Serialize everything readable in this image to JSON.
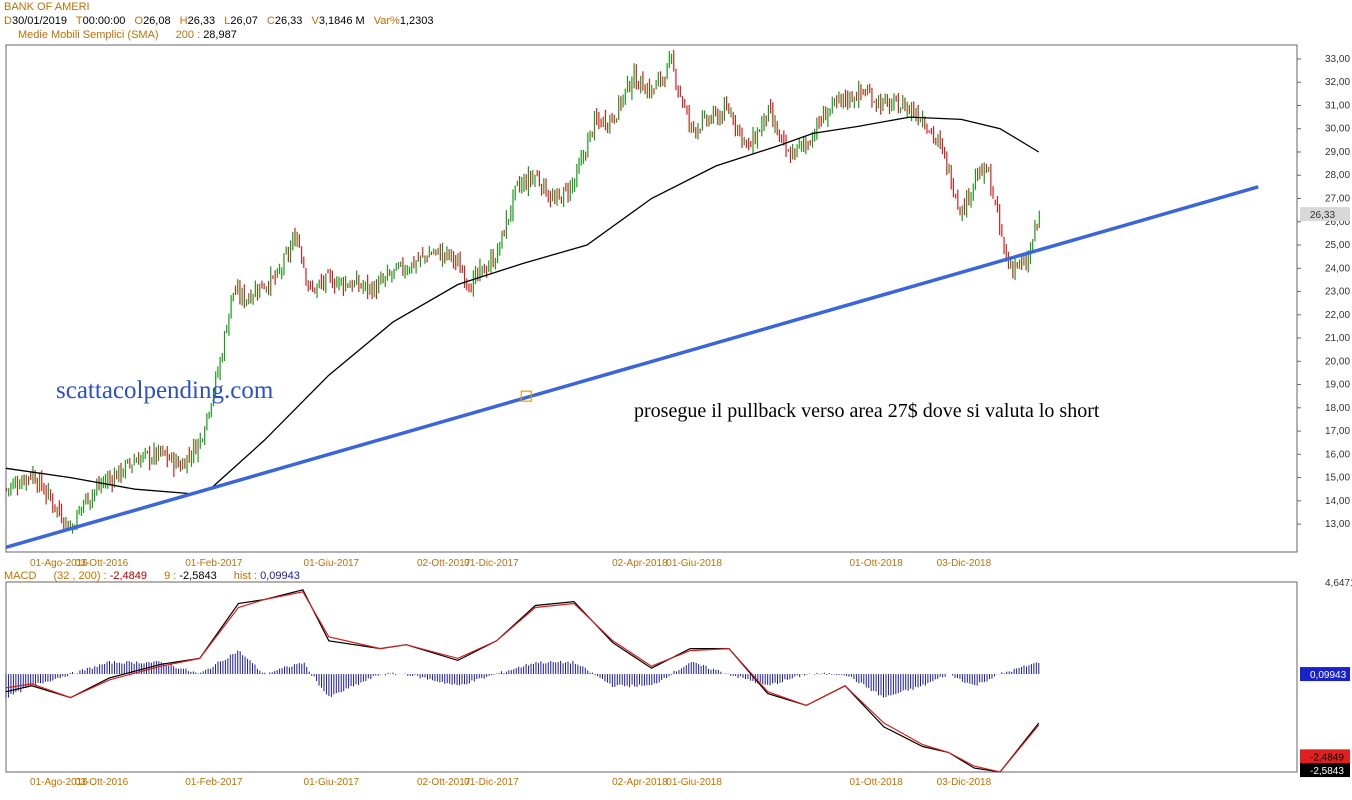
{
  "header": {
    "symbol": "BANK OF AMERI",
    "date_key": "D",
    "date_val": "30/01/2019",
    "time_key": "T",
    "time_val": "00:00:00",
    "open_key": "O",
    "open_val": "26,08",
    "high_key": "H",
    "high_val": "26,33",
    "low_key": "L",
    "low_val": "26,07",
    "close_key": "C",
    "close_val": "26,33",
    "volume_key": "V",
    "volume_val": "3,1846 M",
    "var_key": "Var%",
    "var_val": "1,2303",
    "sma_label": "Medie Mobili Semplici (SMA)",
    "sma_period": "200 :",
    "sma_value": "28,987"
  },
  "macd_header": {
    "label": "MACD",
    "params": "(32 , 200) :",
    "macd_value": "-2,4849",
    "signal_key": "9 :",
    "signal_value": "-2,5843",
    "hist_key": "hist :",
    "hist_value": "0,09943"
  },
  "annotations": {
    "watermark": "scattacolpending.com",
    "note": "prosegue il pullback verso area 27$ dove si valuta lo short"
  },
  "colors": {
    "up_bar": "#1a9a1a",
    "down_bar": "#d02020",
    "sma_line": "#000000",
    "trendline": "#3a66d8",
    "macd_line": "#000000",
    "signal_line": "#d02020",
    "histogram": "#1a1aa0",
    "date_text": "#c07000",
    "last_price_tag": "#d8d8d8",
    "hist_tag": "#1a22cc",
    "macd_tag": "#e02020",
    "signal_tag": "#000000"
  },
  "chart_data": [
    {
      "type": "candlestick",
      "title": "BANK OF AMERI",
      "y_ticks": [
        "13,00",
        "14,00",
        "15,00",
        "16,00",
        "17,00",
        "18,00",
        "19,00",
        "20,00",
        "21,00",
        "22,00",
        "23,00",
        "24,00",
        "25,00",
        "26,00",
        "27,00",
        "28,00",
        "29,00",
        "30,00",
        "31,00",
        "32,00",
        "33,00"
      ],
      "ylim": [
        11.8,
        33.6
      ],
      "last_price_label": "26,33",
      "x_date_labels": [
        "01-Ago-2016",
        "03-Ott-2016",
        "01-Feb-2017",
        "01-Giu-2017",
        "02-Ott-2017",
        "01-Dic-2017",
        "02-Apr-2018",
        "01-Giu-2018",
        "01-Ott-2018",
        "03-Dic-2018"
      ],
      "x_date_pos": [
        0.041,
        0.074,
        0.161,
        0.252,
        0.339,
        0.376,
        0.491,
        0.533,
        0.674,
        0.742
      ],
      "close_path": {
        "x": [
          0,
          0.02,
          0.035,
          0.05,
          0.06,
          0.075,
          0.09,
          0.1,
          0.12,
          0.135,
          0.15,
          0.165,
          0.175,
          0.185,
          0.195,
          0.21,
          0.225,
          0.235,
          0.25,
          0.27,
          0.285,
          0.3,
          0.315,
          0.33,
          0.345,
          0.36,
          0.38,
          0.395,
          0.41,
          0.425,
          0.44,
          0.455,
          0.47,
          0.485,
          0.5,
          0.515,
          0.53,
          0.545,
          0.56,
          0.575,
          0.59,
          0.605,
          0.62,
          0.635,
          0.65,
          0.665,
          0.68,
          0.695,
          0.71,
          0.725,
          0.74,
          0.75,
          0.76,
          0.775,
          0.79,
          0.8
        ],
        "y": [
          14.5,
          15.2,
          14.0,
          12.8,
          14.0,
          14.8,
          15.3,
          15.8,
          16.0,
          15.5,
          16.6,
          19.8,
          23.0,
          22.7,
          23.2,
          23.6,
          25.5,
          23.0,
          23.5,
          23.3,
          23.1,
          23.8,
          24.2,
          24.7,
          24.5,
          23.3,
          24.6,
          27.4,
          28.0,
          26.8,
          27.7,
          30.2,
          30.5,
          32.2,
          31.6,
          32.8,
          30.0,
          30.4,
          30.8,
          29.1,
          30.7,
          28.8,
          29.4,
          30.7,
          31.3,
          31.6,
          31.0,
          31.0,
          30.5,
          29.0,
          26.4,
          27.9,
          28.2,
          24.2,
          24.1,
          26.3
        ]
      },
      "sma200": {
        "x": [
          0,
          0.05,
          0.1,
          0.145,
          0.16,
          0.2,
          0.25,
          0.3,
          0.35,
          0.4,
          0.45,
          0.5,
          0.55,
          0.6,
          0.625,
          0.66,
          0.7,
          0.74,
          0.77,
          0.8
        ],
        "y": [
          15.4,
          15.0,
          14.5,
          14.3,
          14.6,
          16.6,
          19.4,
          21.7,
          23.3,
          24.2,
          25.0,
          27.0,
          28.4,
          29.3,
          29.8,
          30.1,
          30.5,
          30.4,
          30.0,
          29.0
        ]
      },
      "trendline": {
        "start": [
          0,
          12.0
        ],
        "end": [
          0.97,
          27.5
        ]
      },
      "note_marker": [
        0.403,
        18.5
      ]
    },
    {
      "type": "line",
      "title": "MACD",
      "series": [
        {
          "name": "MACD",
          "values_x": [
            0,
            0.02,
            0.05,
            0.08,
            0.12,
            0.15,
            0.18,
            0.2,
            0.23,
            0.25,
            0.29,
            0.31,
            0.35,
            0.38,
            0.41,
            0.44,
            0.47,
            0.5,
            0.53,
            0.56,
            0.59,
            0.62,
            0.65,
            0.68,
            0.71,
            0.73,
            0.75,
            0.77,
            0.8
          ],
          "values_y": [
            -0.9,
            -0.6,
            -1.2,
            -0.2,
            0.5,
            0.8,
            3.6,
            3.8,
            4.3,
            1.7,
            1.3,
            1.5,
            0.7,
            1.7,
            3.5,
            3.7,
            1.6,
            0.3,
            1.3,
            1.3,
            -1.0,
            -1.6,
            -0.6,
            -2.7,
            -3.7,
            -4.0,
            -4.8,
            -5.0,
            -2.5
          ]
        },
        {
          "name": "9",
          "values_x": [
            0,
            0.02,
            0.05,
            0.08,
            0.12,
            0.15,
            0.18,
            0.2,
            0.23,
            0.25,
            0.29,
            0.31,
            0.35,
            0.38,
            0.41,
            0.44,
            0.47,
            0.5,
            0.53,
            0.56,
            0.59,
            0.62,
            0.65,
            0.68,
            0.71,
            0.73,
            0.75,
            0.77,
            0.8
          ],
          "values_y": [
            -0.7,
            -0.5,
            -1.2,
            -0.3,
            0.4,
            0.8,
            3.4,
            3.8,
            4.2,
            1.9,
            1.3,
            1.5,
            0.8,
            1.7,
            3.4,
            3.6,
            1.7,
            0.4,
            1.2,
            1.3,
            -0.9,
            -1.6,
            -0.6,
            -2.5,
            -3.6,
            -4.0,
            -4.7,
            -5.0,
            -2.6
          ]
        }
      ],
      "axis_labels": {
        "top": "4,6471",
        "hist": "0,09943",
        "macd": "-2,4849",
        "signal": "-2,5843"
      },
      "ylim": [
        -5.0,
        4.7
      ],
      "x_date_labels": [
        "01-Ago-2016",
        "03-Ott-2016",
        "01-Feb-2017",
        "01-Giu-2017",
        "02-Ott-2017",
        "01-Dic-2017",
        "02-Apr-2018",
        "01-Giu-2018",
        "01-Ott-2018",
        "03-Dic-2018"
      ]
    }
  ]
}
